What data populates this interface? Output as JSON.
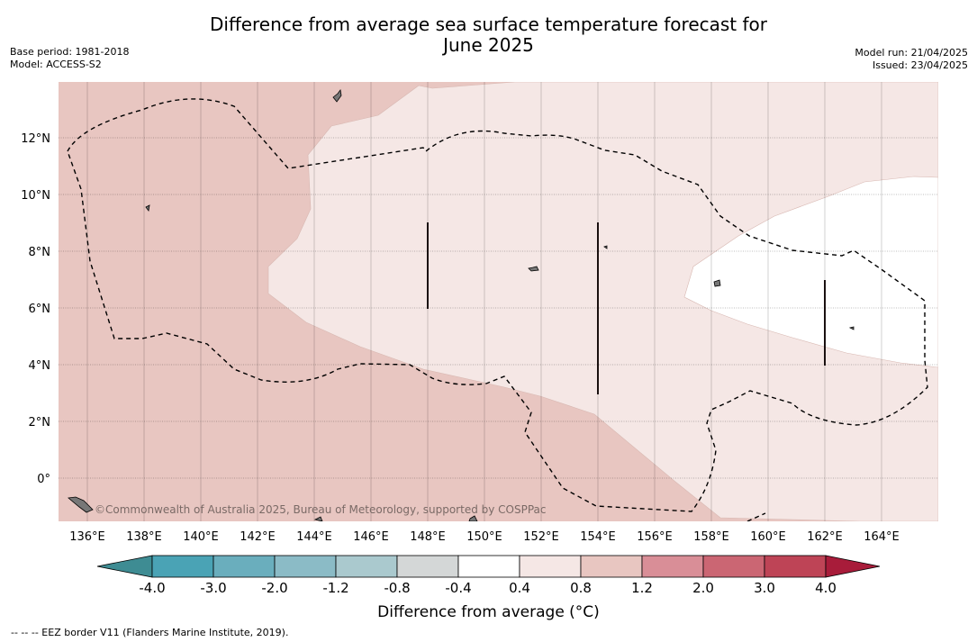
{
  "title_line1": "Difference from average sea surface temperature forecast for",
  "title_line2": "June 2025",
  "base_period": "Base period: 1981-2018",
  "model": "Model: ACCESS-S2",
  "model_run": "Model run: 21/04/2025",
  "issued": "Issued: 23/04/2025",
  "credit": "©Commonwealth of Australia 2025, Bureau of Meteorology, supported by COSPPac",
  "lat_labels": [
    "12°N",
    "10°N",
    "8°N",
    "6°N",
    "4°N",
    "2°N",
    "0°"
  ],
  "lon_labels": [
    "136°E",
    "138°E",
    "140°E",
    "142°E",
    "144°E",
    "146°E",
    "148°E",
    "150°E",
    "152°E",
    "154°E",
    "156°E",
    "158°E",
    "160°E",
    "162°E",
    "164°E"
  ],
  "colorbar": {
    "title": "Difference from average (°C)",
    "labels": [
      "-4.0",
      "-3.0",
      "-2.0",
      "-1.2",
      "-0.8",
      "-0.4",
      "0.4",
      "0.8",
      "1.2",
      "2.0",
      "3.0",
      "4.0"
    ],
    "colors": [
      "#3e8c93",
      "#4aa3b5",
      "#6aaebd",
      "#8bbbc6",
      "#aac9ce",
      "#d4d7d7",
      "#ffffff",
      "#f5e7e5",
      "#e8c6c1",
      "#d98e97",
      "#cb6673",
      "#be4456",
      "#a81c3a"
    ]
  },
  "footer": "--  --  -- EEZ border V11 (Flanders Marine Institute, 2019)."
}
